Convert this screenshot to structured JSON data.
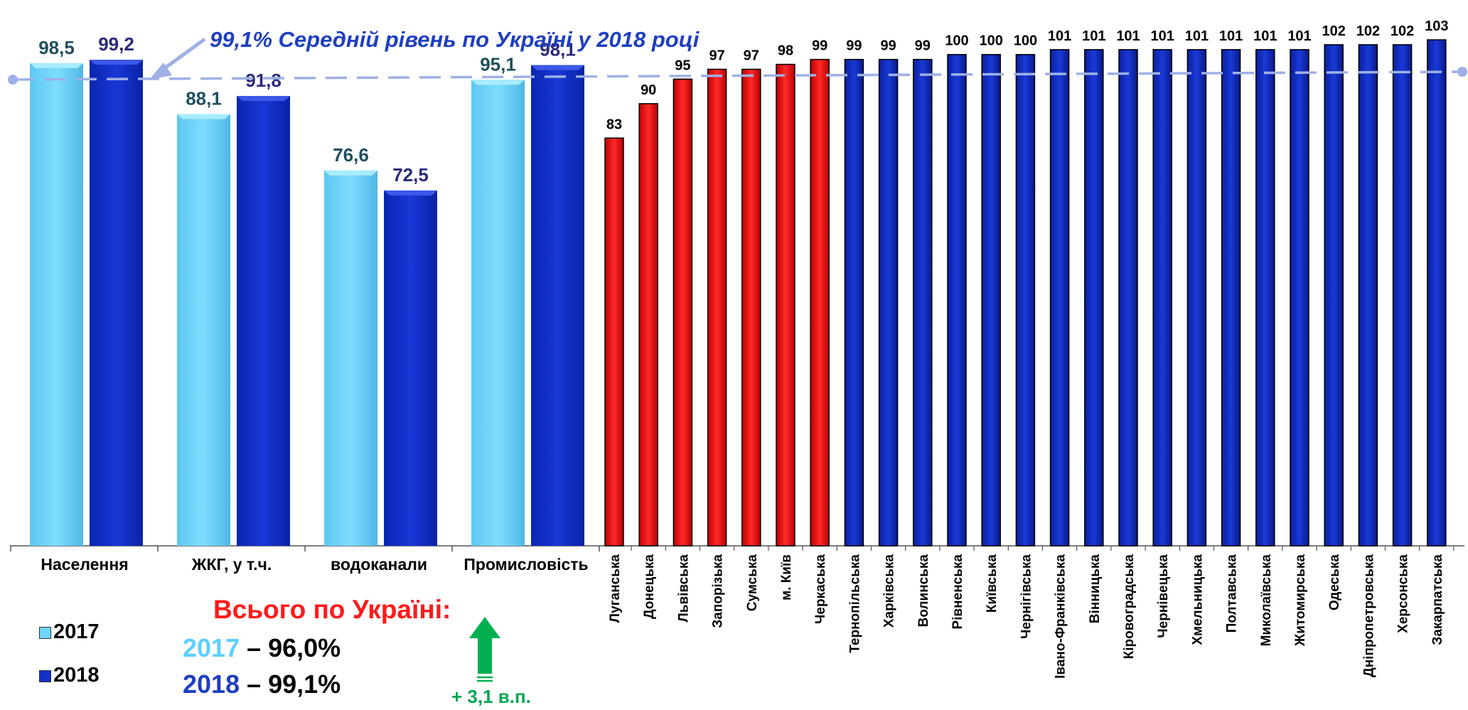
{
  "annotation": "99,1% Середній рівень по Україні у 2018 році",
  "colors": {
    "c2017": "#6fd6ff",
    "c2018": "#1030c8",
    "region_low": "#ee1a1a",
    "region_ok": "#1030c8",
    "avg_line": "#9fb0e6",
    "label_2017": "#1f4f5f",
    "label_2018": "#2a2a7a",
    "arrow_up": "#00b050",
    "total_title": "#ff1a1a"
  },
  "legend": {
    "label_2017": "2017",
    "label_2018": "2018"
  },
  "total": {
    "title": "Всього по Україні:",
    "year_2017": "2017",
    "value_2017": " – 96,0%",
    "year_2018": "2018",
    "value_2018": " – 99,1%",
    "delta": "+ 3,1 в.п.",
    "delta_icon": "arrow-up-icon"
  },
  "chart_data": [
    {
      "type": "bar",
      "categories": [
        "Населення",
        "ЖКГ, у т.ч.",
        "водоканали",
        "Промисловість"
      ],
      "series": [
        {
          "name": "2017",
          "values": [
            98.5,
            88.1,
            76.6,
            95.1
          ],
          "labels": [
            "98,5",
            "88,1",
            "76,6",
            "95,1"
          ]
        },
        {
          "name": "2018",
          "values": [
            99.2,
            91.8,
            72.5,
            98.1
          ],
          "labels": [
            "99,2",
            "91,8",
            "72,5",
            "98,1"
          ]
        }
      ],
      "ylim": [
        0,
        100
      ],
      "reference_line": 99.1,
      "legend": "bottom-left"
    },
    {
      "type": "bar",
      "categories": [
        "Луганська",
        "Донецька",
        "Львівська",
        "Запорізька",
        "Сумська",
        "м. Київ",
        "Черкаська",
        "Тернопільська",
        "Харківська",
        "Волинська",
        "Рівненська",
        "Київська",
        "Чернігівська",
        "Івано-Франківська",
        "Вінницька",
        "Кіровоградська",
        "Чернівецька",
        "Хмельницька",
        "Полтавська",
        "Миколаївська",
        "Житомирська",
        "Одеська",
        "Дніпропетровська",
        "Херсонська",
        "Закарпатська"
      ],
      "values": [
        83,
        90,
        95,
        97,
        97,
        98,
        99,
        99,
        99,
        99,
        100,
        100,
        100,
        101,
        101,
        101,
        101,
        101,
        101,
        101,
        101,
        102,
        102,
        102,
        103
      ],
      "labels": [
        "83",
        "90",
        "95",
        "97",
        "97",
        "98",
        "99",
        "99",
        "99",
        "99",
        "100",
        "100",
        "100",
        "101",
        "101",
        "101",
        "101",
        "101",
        "101",
        "101",
        "101",
        "102",
        "102",
        "102",
        "103"
      ],
      "below_average_count": 7,
      "ylim": [
        0,
        103
      ],
      "reference_line": 99.1
    }
  ]
}
